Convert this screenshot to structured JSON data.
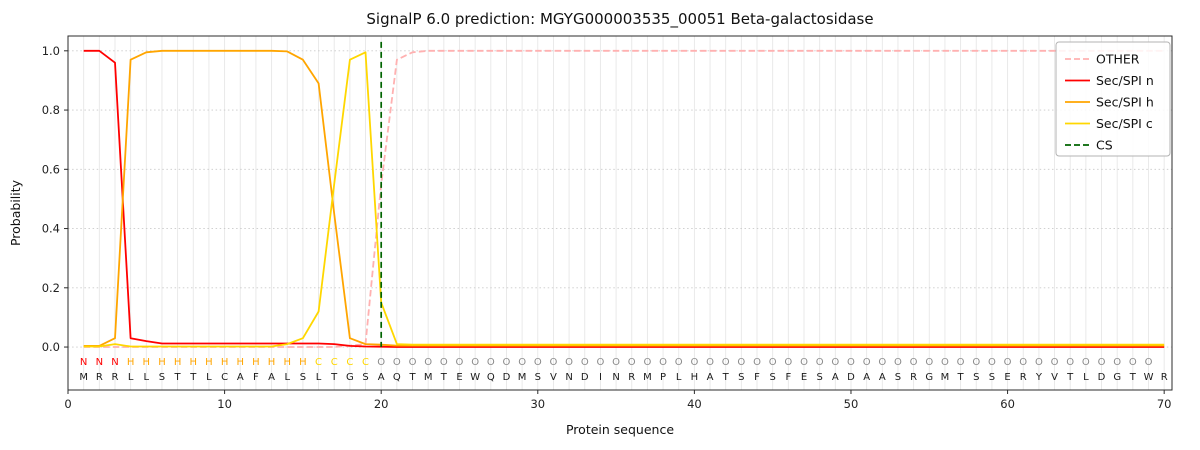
{
  "chart_data": {
    "type": "line",
    "title": "SignalP 6.0 prediction: MGYG000003535_00051 Beta-galactosidase",
    "xlabel": "Protein sequence",
    "ylabel": "Probability",
    "xlim": [
      0,
      70.5
    ],
    "ylim": [
      -0.145,
      1.05
    ],
    "xticks": [
      0,
      10,
      20,
      30,
      40,
      50,
      60,
      70
    ],
    "yticks": [
      0.0,
      0.2,
      0.4,
      0.6,
      0.8,
      1.0
    ],
    "grid": true,
    "legend_position": "upper right",
    "sequence": "MRRLLSTTLCAFALSLTGSAQTMTEWQDMSVNDINRMPLHATSFSFESADAASRGMTSSERYVTLDGTWR",
    "region_labels": "NNNHHHHHHHHHHHHCCCCOOOOOOOOOOOOOOOOOOOOOOOOOOOOOOOOOOOOOOOOOOOOOOOOOO",
    "region_colors": {
      "N": "#ff0000",
      "H": "#ffa500",
      "C": "#ffd700",
      "O": "#8c8c8c"
    },
    "cs_position": 20,
    "series": [
      {
        "name": "OTHER",
        "color": "#ffb1b1",
        "dash": "dashed",
        "values": [
          0,
          0,
          0,
          0,
          0,
          0,
          0,
          0,
          0,
          0,
          0,
          0,
          0,
          0,
          0,
          0,
          0,
          0.005,
          0.01,
          0.55,
          0.97,
          0.995,
          1,
          1,
          1,
          1,
          1,
          1,
          1,
          1,
          1,
          1,
          1,
          1,
          1,
          1,
          1,
          1,
          1,
          1,
          1,
          1,
          1,
          1,
          1,
          1,
          1,
          1,
          1,
          1,
          1,
          1,
          1,
          1,
          1,
          1,
          1,
          1,
          1,
          1,
          1,
          1,
          1,
          1,
          1,
          1,
          1,
          1,
          1,
          1
        ]
      },
      {
        "name": "Sec/SPI n",
        "color": "#ff0000",
        "dash": "solid",
        "values": [
          1,
          1,
          0.96,
          0.03,
          0.02,
          0.012,
          0.012,
          0.012,
          0.012,
          0.012,
          0.012,
          0.012,
          0.012,
          0.012,
          0.012,
          0.012,
          0.01,
          0.004,
          0.002,
          0.001,
          0,
          0,
          0,
          0,
          0,
          0,
          0,
          0,
          0,
          0,
          0,
          0,
          0,
          0,
          0,
          0,
          0,
          0,
          0,
          0,
          0,
          0,
          0,
          0,
          0,
          0,
          0,
          0,
          0,
          0,
          0,
          0,
          0,
          0,
          0,
          0,
          0,
          0,
          0,
          0,
          0,
          0,
          0,
          0,
          0,
          0,
          0,
          0,
          0,
          0
        ]
      },
      {
        "name": "Sec/SPI h",
        "color": "#ffa500",
        "dash": "solid",
        "values": [
          0.004,
          0.004,
          0.03,
          0.97,
          0.995,
          1,
          1,
          1,
          1,
          1,
          1,
          1,
          1,
          0.998,
          0.97,
          0.89,
          0.45,
          0.03,
          0.01,
          0.008,
          0.005,
          0.005,
          0.005,
          0.005,
          0.005,
          0.005,
          0.005,
          0.005,
          0.005,
          0.005,
          0.005,
          0.005,
          0.005,
          0.005,
          0.005,
          0.005,
          0.005,
          0.005,
          0.005,
          0.005,
          0.005,
          0.005,
          0.005,
          0.005,
          0.005,
          0.005,
          0.005,
          0.005,
          0.005,
          0.005,
          0.005,
          0.005,
          0.005,
          0.005,
          0.005,
          0.005,
          0.005,
          0.005,
          0.005,
          0.005,
          0.005,
          0.005,
          0.005,
          0.005,
          0.005,
          0.005,
          0.005,
          0.005,
          0.005,
          0.005
        ]
      },
      {
        "name": "Sec/SPI c",
        "color": "#ffd700",
        "dash": "solid",
        "values": [
          0.002,
          0.002,
          0.01,
          0.002,
          0.002,
          0.002,
          0.002,
          0.002,
          0.002,
          0.002,
          0.002,
          0.002,
          0.002,
          0.01,
          0.03,
          0.12,
          0.55,
          0.97,
          0.995,
          0.15,
          0.01,
          0.008,
          0.008,
          0.008,
          0.008,
          0.008,
          0.008,
          0.008,
          0.008,
          0.008,
          0.008,
          0.008,
          0.008,
          0.008,
          0.008,
          0.008,
          0.008,
          0.008,
          0.008,
          0.008,
          0.008,
          0.008,
          0.008,
          0.008,
          0.008,
          0.008,
          0.008,
          0.008,
          0.008,
          0.008,
          0.008,
          0.008,
          0.008,
          0.008,
          0.008,
          0.008,
          0.008,
          0.008,
          0.008,
          0.008,
          0.008,
          0.008,
          0.008,
          0.008,
          0.008,
          0.008,
          0.008,
          0.008,
          0.008,
          0.008
        ]
      },
      {
        "name": "CS",
        "color": "#006400",
        "dash": "dashed",
        "type": "vline",
        "x": 20
      }
    ]
  }
}
